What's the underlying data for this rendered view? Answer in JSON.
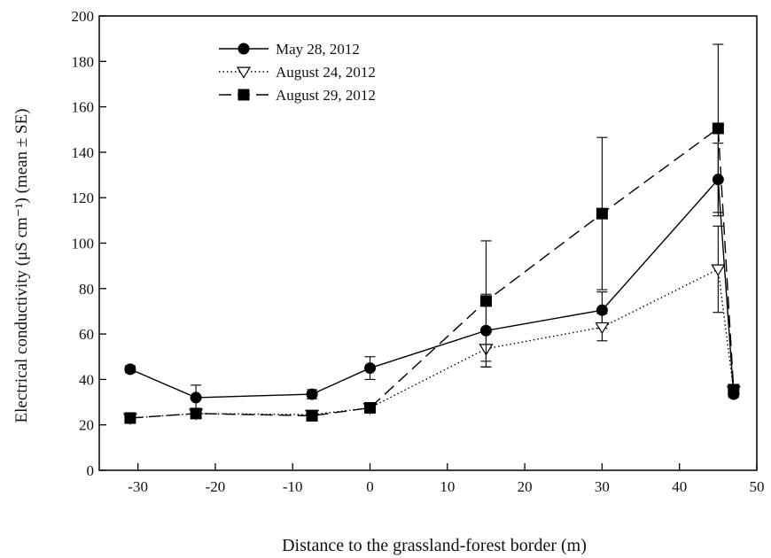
{
  "chart_data": {
    "type": "line",
    "xlabel": "Distance to the grassland-forest border (m)",
    "ylabel": "Electrical conductivity (μS cm⁻¹) (mean ± SE)",
    "xlim": [
      -35,
      50
    ],
    "ylim": [
      0,
      200
    ],
    "xticks": [
      -30,
      -20,
      -10,
      0,
      10,
      20,
      30,
      40,
      50
    ],
    "yticks": [
      0,
      20,
      40,
      60,
      80,
      100,
      120,
      140,
      160,
      180,
      200
    ],
    "xtick_labels": [
      "-30",
      "-20",
      "-10",
      "0",
      "10",
      "20",
      "30",
      "40",
      "50"
    ],
    "ytick_labels": [
      "0",
      "20",
      "40",
      "60",
      "80",
      "100",
      "120",
      "140",
      "160",
      "180",
      "200"
    ],
    "grid": false,
    "legend_position": "top-left",
    "series": [
      {
        "name": "May 28, 2012",
        "marker": "circle",
        "line_style": "solid",
        "x": [
          -31,
          -22.5,
          -7.5,
          0,
          15,
          30,
          45,
          47
        ],
        "y": [
          44.5,
          32,
          33.5,
          45,
          61.5,
          70.5,
          128,
          33.5
        ],
        "err": [
          1.5,
          5.5,
          2,
          5,
          16,
          8,
          16,
          1.5
        ]
      },
      {
        "name": "August 24, 2012",
        "marker": "triangle-down-open",
        "line_style": "dotted",
        "x": [
          -31,
          -22.5,
          -7.5,
          0,
          15,
          30,
          45,
          47
        ],
        "y": [
          23,
          25,
          24.5,
          27.5,
          53.5,
          63,
          88.5,
          35
        ],
        "err": [
          1.5,
          2,
          1.5,
          1.5,
          8,
          6,
          19,
          2
        ]
      },
      {
        "name": "August 29, 2012",
        "marker": "square",
        "line_style": "dashed",
        "x": [
          -31,
          -22.5,
          -7.5,
          0,
          15,
          30,
          45,
          47
        ],
        "y": [
          23,
          25,
          24,
          27.5,
          74.5,
          113,
          150.5,
          35.5
        ],
        "err": [
          1.5,
          1.5,
          1.5,
          1.5,
          26.5,
          33.5,
          37,
          2
        ]
      }
    ]
  }
}
